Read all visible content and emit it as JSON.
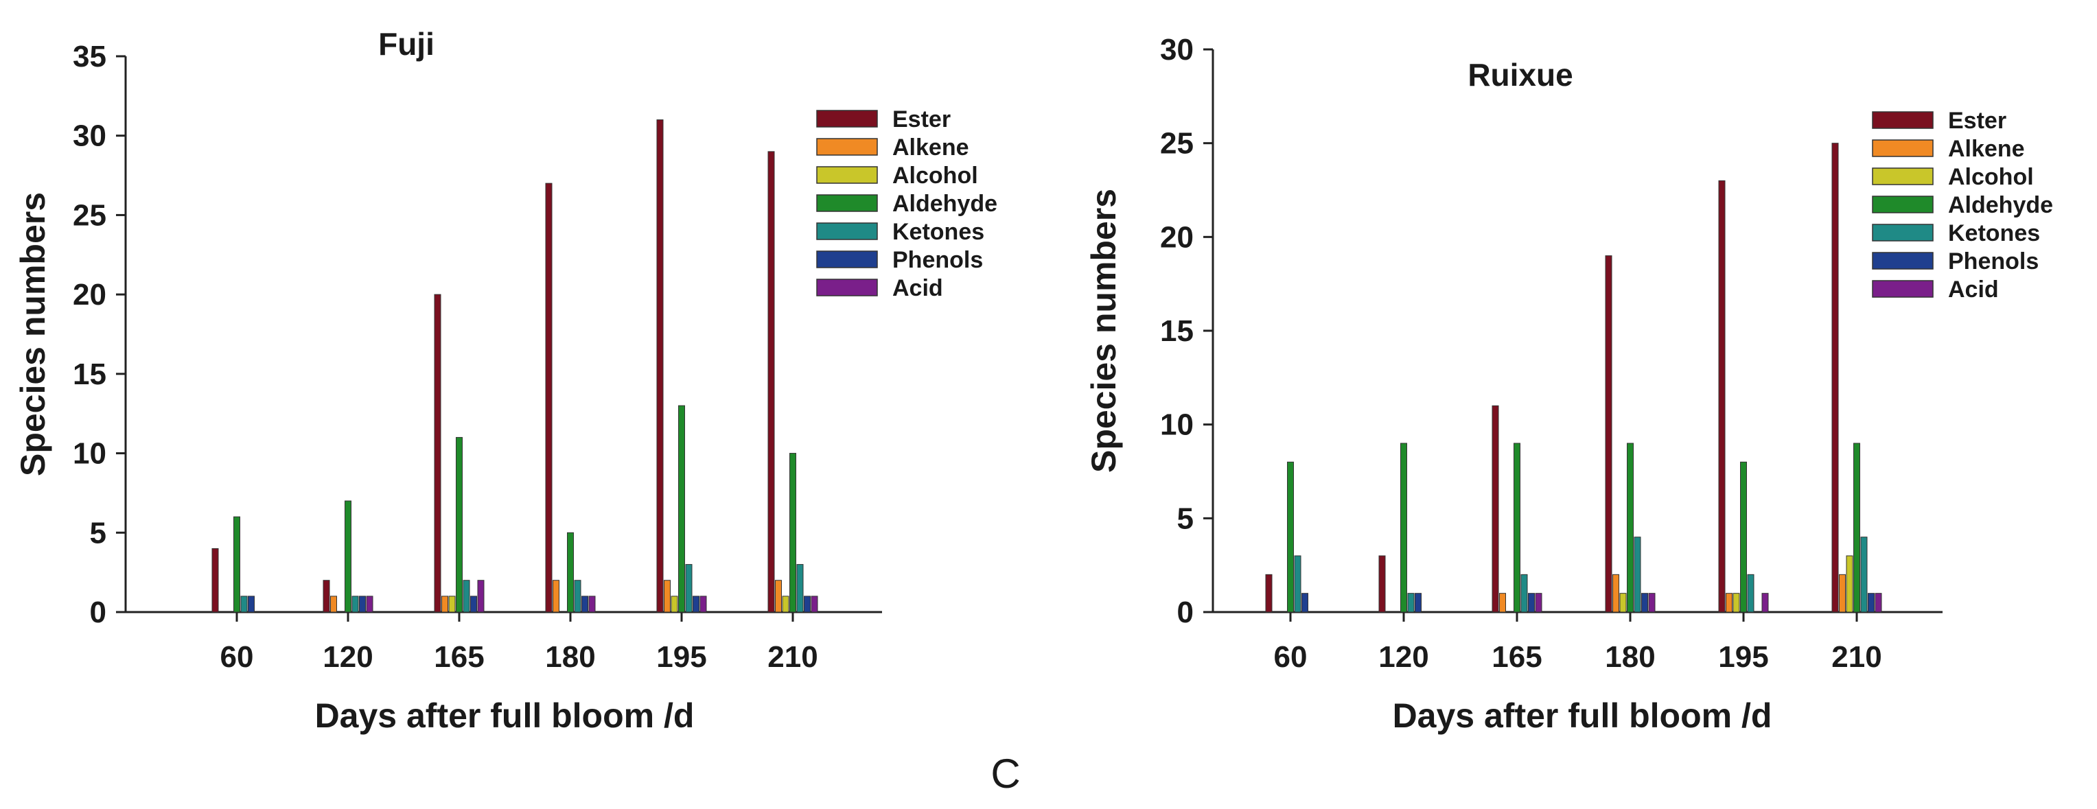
{
  "caption": "C",
  "chart_data": [
    {
      "type": "bar",
      "title": "Fuji",
      "xlabel": "Days after full bloom /d",
      "ylabel": "Species numbers",
      "ylim": [
        0,
        35
      ],
      "yticks": [
        0,
        5,
        10,
        15,
        20,
        25,
        30,
        35
      ],
      "categories": [
        "60",
        "120",
        "165",
        "180",
        "195",
        "210"
      ],
      "legend_position": "top-right",
      "series": [
        {
          "name": "Ester",
          "color": "#7a1020",
          "values": [
            4,
            2,
            20,
            27,
            31,
            29
          ]
        },
        {
          "name": "Alkene",
          "color": "#f08a24",
          "values": [
            0,
            1,
            1,
            2,
            2,
            2
          ]
        },
        {
          "name": "Alcohol",
          "color": "#c9c62a",
          "values": [
            0,
            0,
            1,
            0,
            1,
            1
          ]
        },
        {
          "name": "Aldehyde",
          "color": "#1f8a2a",
          "values": [
            6,
            7,
            11,
            5,
            13,
            10
          ]
        },
        {
          "name": "Ketones",
          "color": "#1f8a86",
          "values": [
            1,
            1,
            2,
            2,
            3,
            3
          ]
        },
        {
          "name": "Phenols",
          "color": "#1f3f8f",
          "values": [
            1,
            1,
            1,
            1,
            1,
            1
          ]
        },
        {
          "name": "Acid",
          "color": "#7a1f8a",
          "values": [
            0,
            1,
            2,
            1,
            1,
            1
          ]
        }
      ]
    },
    {
      "type": "bar",
      "title": "Ruixue",
      "xlabel": "Days after full bloom /d",
      "ylabel": "Species numbers",
      "ylim": [
        0,
        30
      ],
      "yticks": [
        0,
        5,
        10,
        15,
        20,
        25,
        30
      ],
      "categories": [
        "60",
        "120",
        "165",
        "180",
        "195",
        "210"
      ],
      "legend_position": "top-right",
      "series": [
        {
          "name": "Ester",
          "color": "#7a1020",
          "values": [
            2,
            3,
            11,
            19,
            23,
            25
          ]
        },
        {
          "name": "Alkene",
          "color": "#f08a24",
          "values": [
            0,
            0,
            1,
            2,
            1,
            2
          ]
        },
        {
          "name": "Alcohol",
          "color": "#c9c62a",
          "values": [
            0,
            0,
            0,
            1,
            1,
            3
          ]
        },
        {
          "name": "Aldehyde",
          "color": "#1f8a2a",
          "values": [
            8,
            9,
            9,
            9,
            8,
            9
          ]
        },
        {
          "name": "Ketones",
          "color": "#1f8a86",
          "values": [
            3,
            1,
            2,
            4,
            2,
            4
          ]
        },
        {
          "name": "Phenols",
          "color": "#1f3f8f",
          "values": [
            1,
            1,
            1,
            1,
            0,
            1
          ]
        },
        {
          "name": "Acid",
          "color": "#7a1f8a",
          "values": [
            0,
            0,
            1,
            1,
            1,
            1
          ]
        }
      ]
    }
  ]
}
